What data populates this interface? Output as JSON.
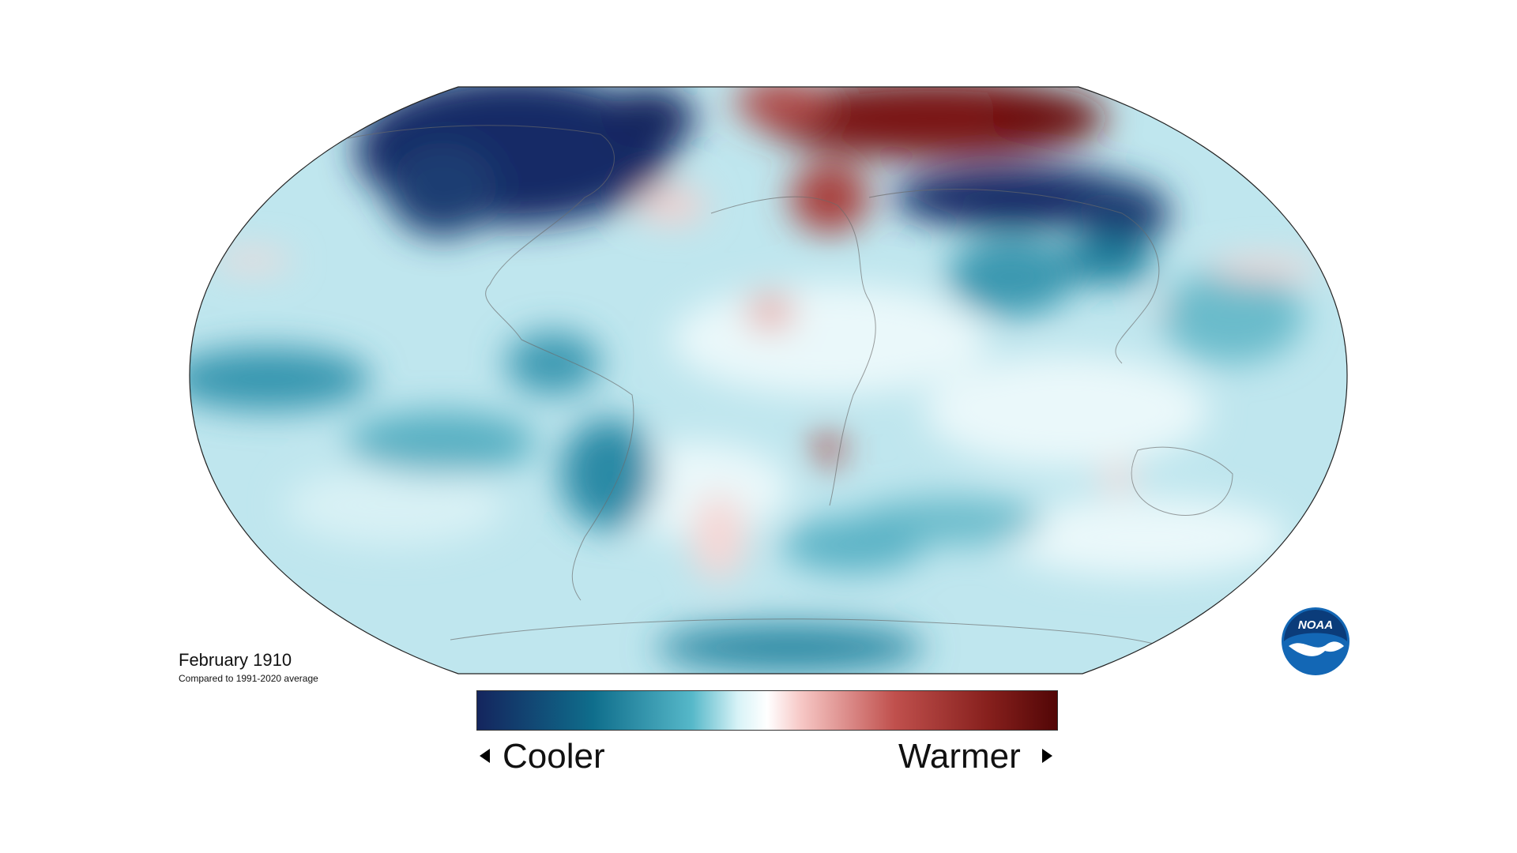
{
  "caption": {
    "title": "February 1910",
    "subtitle": "Compared to 1991-2020 average"
  },
  "legend": {
    "cool_label": "Cooler",
    "warm_label": "Warmer",
    "gradient": [
      "#14255e",
      "#0f6e8c",
      "#56b8c9",
      "#d8f3f7",
      "#ffffff",
      "#f6c6c4",
      "#c0504d",
      "#87201d",
      "#520606"
    ]
  },
  "map": {
    "projection": "robinson",
    "ocean_base": "#bfe6ee",
    "cool_strong": "#142a66",
    "cool_mid": "#1a7f9c",
    "neutral": "#eaf8fa",
    "warm_mid": "#c9605b",
    "warm_strong": "#6a0c0c"
  },
  "logo": {
    "text": "NOAA",
    "color": "#1367b5"
  }
}
